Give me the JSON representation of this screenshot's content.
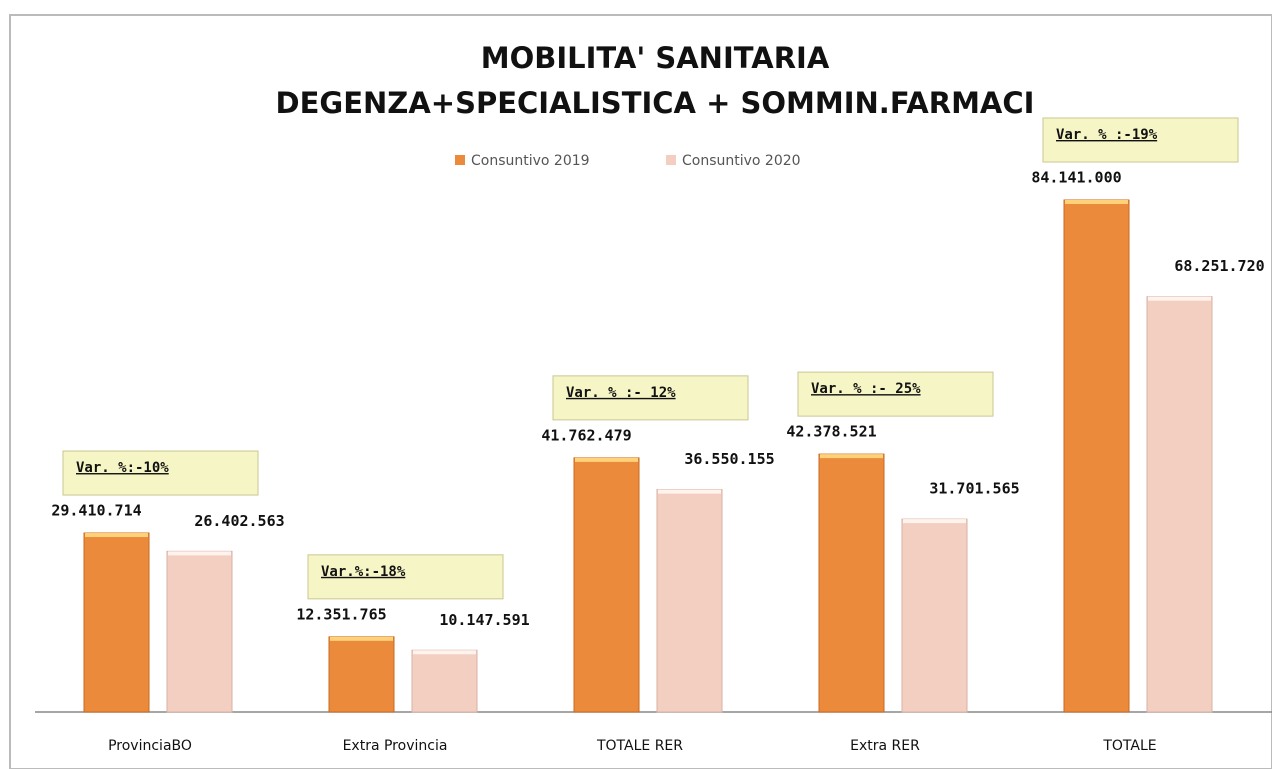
{
  "chart_data": {
    "type": "bar",
    "title": "MOBILITA' SANITARIA",
    "subtitle": "DEGENZA+SPECIALISTICA + SOMMIN.FARMACI",
    "categories": [
      "ProvinciaBO",
      "Extra Provincia",
      "TOTALE RER",
      "Extra RER",
      "TOTALE"
    ],
    "series": [
      {
        "name": "Consuntivo 2019",
        "color": "#ec8a3c",
        "values": [
          29410714,
          12351765,
          41762479,
          42378521,
          84141000
        ],
        "value_labels": [
          "29.410.714",
          "12.351.765",
          "41.762.479",
          "42.378.521",
          "84.141.000"
        ]
      },
      {
        "name": "Consuntivo 2020",
        "color": "#f3cfc2",
        "values": [
          26402563,
          10147591,
          36550155,
          31701565,
          68251720
        ],
        "value_labels": [
          "26.402.563",
          "10.147.591",
          "36.550.155",
          "31.701.565",
          "68.251.720"
        ]
      }
    ],
    "annotations": [
      "Var. %:-10%",
      "Var.%:-18%",
      "Var. % :- 12%",
      "Var. % :- 25%",
      "Var. %  :-19%"
    ],
    "legend": "top"
  }
}
